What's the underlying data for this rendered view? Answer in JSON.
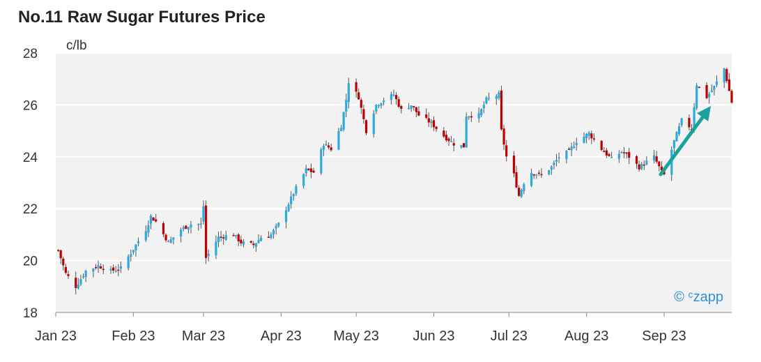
{
  "chart_data": {
    "type": "candlestick",
    "title": "No.11 Raw Sugar Futures Price",
    "ylabel": "c/lb",
    "ylim": [
      18,
      28
    ],
    "yticks": [
      "28",
      "26",
      "24",
      "22",
      "20",
      "18"
    ],
    "xticks": [
      "Jan 23",
      "Feb 23",
      "Mar 23",
      "Apr 23",
      "May 23",
      "Jun 23",
      "Jul 23",
      "Aug 23",
      "Sep 23"
    ],
    "xtick_dates": [
      "2023-01-01",
      "2023-02-01",
      "2023-03-01",
      "2023-04-01",
      "2023-05-01",
      "2023-06-01",
      "2023-07-01",
      "2023-08-01",
      "2023-09-01"
    ],
    "x_end": "2023-09-28",
    "grid": true,
    "colors": {
      "up": "#29abe2",
      "down": "#c00000",
      "wick": "#555555",
      "plot_bg": "#f2f2f2",
      "grid": "#ffffff",
      "arrow": "#1aa39a",
      "brand": "#2e8fd6"
    },
    "brand": "© ᶜzapp",
    "arrow_note": "upward trend arrow",
    "anchors": [
      [
        "2023-01-02",
        20.4
      ],
      [
        "2023-01-05",
        19.5
      ],
      [
        "2023-01-09",
        19.0
      ],
      [
        "2023-01-13",
        19.6
      ],
      [
        "2023-01-18",
        19.8
      ],
      [
        "2023-01-23",
        19.6
      ],
      [
        "2023-01-27",
        19.7
      ],
      [
        "2023-01-31",
        20.3
      ],
      [
        "2023-02-06",
        21.2
      ],
      [
        "2023-02-08",
        21.7
      ],
      [
        "2023-02-10",
        21.5
      ],
      [
        "2023-02-15",
        20.7
      ],
      [
        "2023-02-20",
        21.2
      ],
      [
        "2023-02-24",
        21.4
      ],
      [
        "2023-02-28",
        21.4
      ],
      [
        "2023-03-01",
        22.1
      ],
      [
        "2023-03-02",
        20.1
      ],
      [
        "2023-03-07",
        20.9
      ],
      [
        "2023-03-13",
        21.0
      ],
      [
        "2023-03-16",
        20.7
      ],
      [
        "2023-03-21",
        20.6
      ],
      [
        "2023-03-24",
        20.9
      ],
      [
        "2023-03-28",
        21.0
      ],
      [
        "2023-03-31",
        21.4
      ],
      [
        "2023-04-06",
        22.6
      ],
      [
        "2023-04-11",
        23.5
      ],
      [
        "2023-04-14",
        23.4
      ],
      [
        "2023-04-18",
        24.5
      ],
      [
        "2023-04-21",
        24.3
      ],
      [
        "2023-04-25",
        25.2
      ],
      [
        "2023-04-27",
        26.2
      ],
      [
        "2023-04-28",
        26.9
      ],
      [
        "2023-05-02",
        26.3
      ],
      [
        "2023-05-05",
        25.0
      ],
      [
        "2023-05-09",
        26.0
      ],
      [
        "2023-05-12",
        26.2
      ],
      [
        "2023-05-16",
        26.4
      ],
      [
        "2023-05-19",
        25.8
      ],
      [
        "2023-05-23",
        26.0
      ],
      [
        "2023-05-26",
        25.6
      ],
      [
        "2023-05-31",
        25.3
      ],
      [
        "2023-06-05",
        24.8
      ],
      [
        "2023-06-09",
        24.5
      ],
      [
        "2023-06-13",
        24.4
      ],
      [
        "2023-06-14",
        25.6
      ],
      [
        "2023-06-19",
        25.6
      ],
      [
        "2023-06-22",
        26.2
      ],
      [
        "2023-06-27",
        26.4
      ],
      [
        "2023-06-28",
        25.0
      ],
      [
        "2023-06-30",
        24.0
      ],
      [
        "2023-07-03",
        23.3
      ],
      [
        "2023-07-05",
        22.5
      ],
      [
        "2023-07-07",
        23.0
      ],
      [
        "2023-07-10",
        23.4
      ],
      [
        "2023-07-14",
        23.3
      ],
      [
        "2023-07-18",
        23.6
      ],
      [
        "2023-07-21",
        24.0
      ],
      [
        "2023-07-25",
        24.2
      ],
      [
        "2023-07-28",
        24.6
      ],
      [
        "2023-08-02",
        24.9
      ],
      [
        "2023-08-07",
        24.3
      ],
      [
        "2023-08-11",
        23.9
      ],
      [
        "2023-08-15",
        24.2
      ],
      [
        "2023-08-18",
        24.0
      ],
      [
        "2023-08-22",
        23.6
      ],
      [
        "2023-08-25",
        23.8
      ],
      [
        "2023-08-28",
        24.0
      ],
      [
        "2023-08-31",
        23.4
      ],
      [
        "2023-09-01",
        23.3
      ],
      [
        "2023-09-05",
        24.6
      ],
      [
        "2023-09-08",
        25.4
      ],
      [
        "2023-09-12",
        25.1
      ],
      [
        "2023-09-14",
        26.8
      ],
      [
        "2023-09-18",
        26.3
      ],
      [
        "2023-09-21",
        26.7
      ],
      [
        "2023-09-25",
        27.4
      ],
      [
        "2023-09-28",
        26.1
      ]
    ]
  }
}
